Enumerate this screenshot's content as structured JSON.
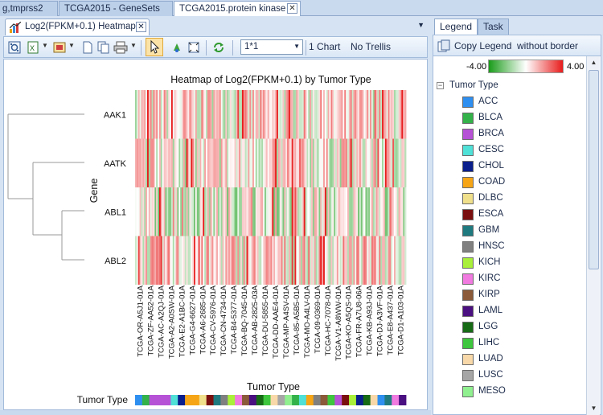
{
  "doc_tabs": [
    {
      "label": "g,tmprss2",
      "active": false
    },
    {
      "label": "TCGA2015 - GeneSets",
      "active": false
    },
    {
      "label": "TCGA2015.protein kinase",
      "active": true
    }
  ],
  "view_tab": {
    "label": "Log2(FPKM+0.1) Heatmap"
  },
  "toolbar": {
    "layout_value": "1*1",
    "chart_count_label": "1 Chart",
    "trellis_label": "No Trellis"
  },
  "right_tabs": [
    {
      "label": "Legend",
      "active": true
    },
    {
      "label": "Task",
      "active": false
    }
  ],
  "legend": {
    "copy_label": "Copy Legend",
    "copy_no_border_label": "without border",
    "gradient_min": "-4.00",
    "gradient_max": "4.00",
    "gradient_colors": {
      "low": "#1a9c1a",
      "mid": "#ffffff",
      "high": "#e81c1c"
    },
    "group_title": "Tumor Type",
    "items": [
      {
        "label": "ACC",
        "color": "#2f8ff0"
      },
      {
        "label": "BLCA",
        "color": "#33b24a"
      },
      {
        "label": "BRCA",
        "color": "#b552d6"
      },
      {
        "label": "CESC",
        "color": "#4fe0d8"
      },
      {
        "label": "CHOL",
        "color": "#0a1e8c"
      },
      {
        "label": "COAD",
        "color": "#f5a516"
      },
      {
        "label": "DLBC",
        "color": "#f0e08c"
      },
      {
        "label": "ESCA",
        "color": "#7a0f0f"
      },
      {
        "label": "GBM",
        "color": "#1f7a80"
      },
      {
        "label": "HNSC",
        "color": "#808080"
      },
      {
        "label": "KICH",
        "color": "#a8f03a"
      },
      {
        "label": "KIRC",
        "color": "#f07ae0"
      },
      {
        "label": "KIRP",
        "color": "#8a5a3a"
      },
      {
        "label": "LAML",
        "color": "#4a0f80"
      },
      {
        "label": "LGG",
        "color": "#176b17"
      },
      {
        "label": "LIHC",
        "color": "#3ec63e"
      },
      {
        "label": "LUAD",
        "color": "#f8d8a8"
      },
      {
        "label": "LUSC",
        "color": "#a6a6a6"
      },
      {
        "label": "MESO",
        "color": "#90f090"
      }
    ]
  },
  "chart_data": {
    "type": "heatmap",
    "title": "Heatmap of Log2(FPKM+0.1) by Tumor Type",
    "ylabel": "Gene",
    "xlabel": "Tumor Type",
    "annotation_label": "Tumor Type",
    "color_scale": {
      "min": -4.0,
      "max": 4.0
    },
    "rows": [
      "AAK1",
      "AATK",
      "ABL1",
      "ABL2"
    ],
    "sample_labels": [
      "TCGA-OR-A5J1-01A",
      "TCGA-ZF-AA52-01A",
      "TCGA-AC-A2QJ-01A",
      "TCGA-A2-A0SW-01A",
      "TCGA-E2-A1BC-01A",
      "TCGA-G4-6627-01A",
      "TCGA-A6-2685-01A",
      "TCGA-CV-5976-01A",
      "TCGA-CN-4734-01A",
      "TCGA-B4-5377-01A",
      "TCGA-BQ-7045-01A",
      "TCGA-AB-2825-03A",
      "TCGA-DU-5855-01A",
      "TCGA-DD-AAE4-01A",
      "TCGA-MP-A4SV-01A",
      "TCGA-85-A5B5-01A",
      "TCGA-MO-A4LV-01A",
      "TCGA-09-0369-01A",
      "TCGA-HC-7078-01A",
      "TCGA-V1-A8WW-01A",
      "TCGA-KO-A5QS-01A",
      "TCGA-FR-A7U8-06A",
      "TCGA-KB-A93J-01A",
      "TCGA-DJ-A3VF-01A",
      "TCGA-E8-A437-01A",
      "TCGA-D1-A103-01A"
    ]
  }
}
